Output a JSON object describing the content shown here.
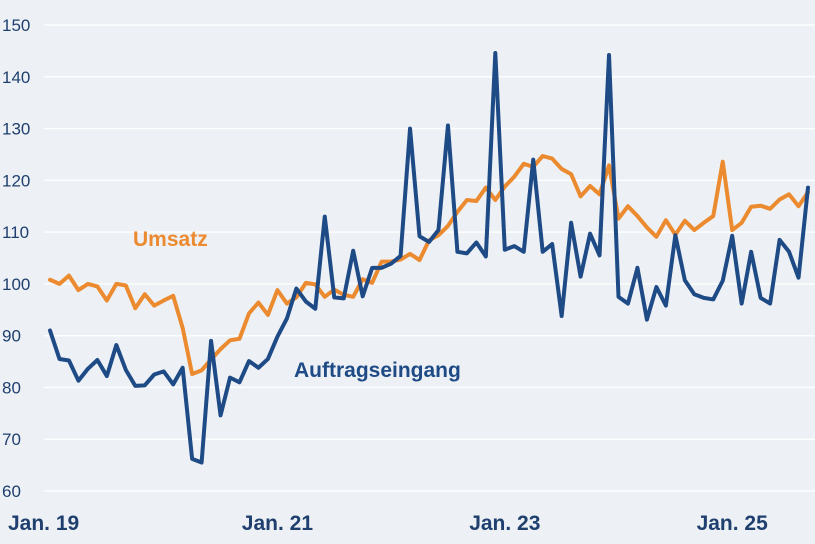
{
  "chart_data": {
    "type": "line",
    "title": "",
    "xlabel": "",
    "ylabel": "",
    "ylim": [
      60,
      150
    ],
    "yticks": [
      60,
      70,
      80,
      90,
      100,
      110,
      120,
      130,
      140,
      150
    ],
    "x_tick_labels": [
      {
        "label": "Jan. 19",
        "index": 0
      },
      {
        "label": "Jan. 21",
        "index": 24
      },
      {
        "label": "Jan. 23",
        "index": 48
      },
      {
        "label": "Jan. 25",
        "index": 72
      }
    ],
    "grid": true,
    "legend": "inline labels",
    "series": [
      {
        "name": "Umsatz",
        "color": "#ec8a2f",
        "values": [
          100.8,
          100,
          101.6,
          98.8,
          100,
          99.5,
          96.8,
          100,
          99.7,
          95.3,
          98,
          95.8,
          96.8,
          97.7,
          91.5,
          82.6,
          83.3,
          85.4,
          87.4,
          89.1,
          89.4,
          94.3,
          96.4,
          94,
          98.8,
          96.2,
          97.4,
          100.2,
          99.9,
          97.5,
          98.9,
          97.9,
          97.5,
          100.9,
          100.2,
          104.3,
          104.3,
          104.7,
          105.8,
          104.6,
          108.4,
          109.4,
          111.2,
          113.9,
          116.2,
          116,
          118.6,
          116.2,
          118.8,
          120.7,
          123.2,
          122.6,
          124.7,
          124.2,
          122.2,
          121.2,
          116.9,
          118.9,
          117.3,
          122.9,
          112.6,
          115,
          113.1,
          110.9,
          109.1,
          112.3,
          109.5,
          112.2,
          110.4,
          111.8,
          113.1,
          123.6,
          110.4,
          111.8,
          114.9,
          115.1,
          114.5,
          116.3,
          117.3,
          115,
          117.7
        ]
      },
      {
        "name": "Auftragseingang",
        "color": "#1e4a86",
        "values": [
          91,
          85.5,
          85.2,
          81.3,
          83.6,
          85.3,
          82.2,
          88.2,
          83.4,
          80.3,
          80.4,
          82.5,
          83.1,
          80.6,
          83.8,
          66.2,
          65.5,
          89,
          74.6,
          81.9,
          81,
          85.1,
          83.8,
          85.5,
          89.8,
          93.3,
          99.1,
          96.6,
          95.2,
          113,
          97.4,
          97.2,
          106.4,
          97.6,
          103.1,
          103.1,
          103.9,
          105.4,
          130,
          109.2,
          108.1,
          110.4,
          130.6,
          106.2,
          105.9,
          108,
          105.3,
          144.6,
          106.6,
          107.3,
          106.2,
          124,
          106.2,
          107.7,
          93.8,
          111.8,
          101.4,
          109.7,
          105.5,
          144.2,
          97.5,
          96.2,
          103.1,
          93.1,
          99.4,
          95.8,
          109.4,
          100.7,
          98,
          97.3,
          97,
          100.6,
          109.3,
          96.2,
          106.2,
          97.3,
          96.2,
          108.5,
          106.2,
          101.2,
          118.6
        ]
      }
    ],
    "annotations": [
      {
        "text": "Umsatz",
        "series": "Umsatz"
      },
      {
        "text": "Auftragseingang",
        "series": "Auftragseingang"
      }
    ]
  }
}
